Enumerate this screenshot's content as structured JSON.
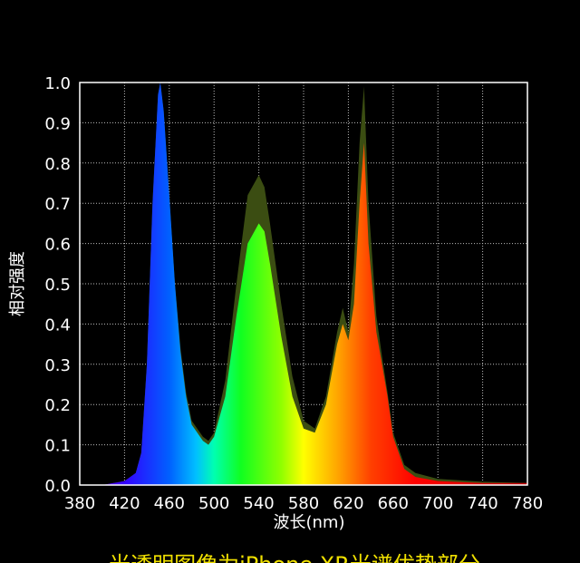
{
  "chart_data": {
    "type": "area",
    "y_label": "相对强度",
    "x_label": "波长(nm)",
    "caption": "光透明图像为iPhone XR光谱优势部分",
    "x": [
      380,
      400,
      420,
      430,
      435,
      440,
      445,
      450,
      452,
      455,
      460,
      465,
      470,
      475,
      480,
      490,
      495,
      500,
      510,
      520,
      530,
      540,
      545,
      550,
      560,
      570,
      580,
      590,
      600,
      610,
      615,
      620,
      625,
      630,
      634,
      638,
      645,
      650,
      655,
      660,
      670,
      680,
      700,
      740,
      780
    ],
    "series": [
      {
        "color": "#3b4d12",
        "values": [
          0,
          0,
          0.01,
          0.03,
          0.08,
          0.3,
          0.7,
          0.97,
          1.0,
          0.93,
          0.72,
          0.5,
          0.34,
          0.23,
          0.16,
          0.12,
          0.11,
          0.13,
          0.26,
          0.5,
          0.72,
          0.77,
          0.74,
          0.65,
          0.45,
          0.27,
          0.16,
          0.14,
          0.22,
          0.38,
          0.44,
          0.38,
          0.55,
          0.85,
          0.99,
          0.7,
          0.42,
          0.32,
          0.23,
          0.13,
          0.05,
          0.03,
          0.015,
          0.008,
          0.005
        ]
      },
      {
        "color": "spectrum",
        "values": [
          0,
          0,
          0.01,
          0.03,
          0.08,
          0.3,
          0.7,
          0.97,
          1.0,
          0.93,
          0.72,
          0.5,
          0.33,
          0.22,
          0.15,
          0.11,
          0.1,
          0.12,
          0.22,
          0.42,
          0.6,
          0.65,
          0.63,
          0.55,
          0.37,
          0.22,
          0.14,
          0.13,
          0.2,
          0.35,
          0.4,
          0.36,
          0.45,
          0.7,
          0.85,
          0.6,
          0.38,
          0.3,
          0.22,
          0.12,
          0.04,
          0.02,
          0.01,
          0.005,
          0.005
        ]
      }
    ],
    "xlim": [
      380,
      780
    ],
    "xticks": [
      380,
      420,
      460,
      500,
      540,
      580,
      620,
      660,
      700,
      740,
      780
    ],
    "ylim": [
      0,
      1
    ],
    "yticks": [
      {
        "value": 0,
        "label": "0.0"
      },
      0.1,
      0.2,
      0.3,
      0.4,
      0.5,
      0.6,
      0.7,
      0.8,
      0.9,
      {
        "value": 1,
        "label": "1.0"
      }
    ],
    "grid": true
  }
}
